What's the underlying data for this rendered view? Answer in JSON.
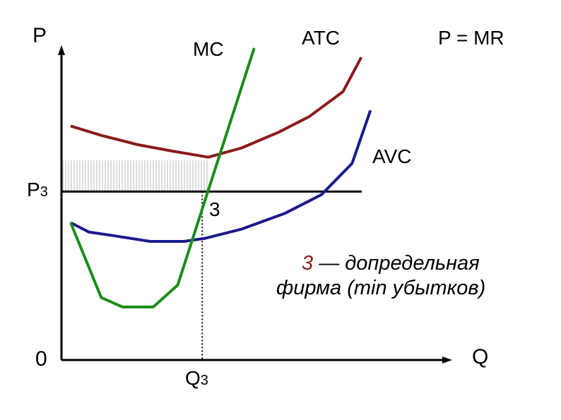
{
  "chart_data": {
    "type": "line",
    "title": "",
    "xlabel": "Q",
    "ylabel": "P",
    "origin_label": "0",
    "price_line_label": "P = MR",
    "p3_label": {
      "main": "P",
      "sub": "3"
    },
    "q3_label": {
      "main": "Q",
      "sub": "3"
    },
    "point_label": "3",
    "grid": false,
    "xlim": [
      0,
      10
    ],
    "ylim": [
      0,
      10
    ],
    "p3": 5.4,
    "q3": 4.6,
    "atc_at_q3": 6.4,
    "colors": {
      "atc": "#8b1a1a",
      "avc": "#1a1a8c",
      "mc": "#1a8c1a",
      "axes": "#000000",
      "note_number": "#8b1a1a"
    },
    "series": [
      {
        "name": "ATC",
        "color": "#8b1a1a",
        "x": [
          0.3,
          1.3,
          2.5,
          3.6,
          4.8,
          5.9,
          7.1,
          8.1,
          9.2,
          9.8
        ],
        "y": [
          7.5,
          7.2,
          6.9,
          6.7,
          6.5,
          6.8,
          7.3,
          7.8,
          8.6,
          9.7
        ]
      },
      {
        "name": "AVC",
        "color": "#1a1a8c",
        "x": [
          0.3,
          0.9,
          1.6,
          2.9,
          4.0,
          4.7,
          5.9,
          7.3,
          8.5,
          9.5,
          10.1
        ],
        "y": [
          4.4,
          4.1,
          4.0,
          3.8,
          3.8,
          3.9,
          4.2,
          4.7,
          5.3,
          6.3,
          8.0
        ]
      },
      {
        "name": "MC",
        "color": "#1a8c1a",
        "x": [
          0.3,
          1.3,
          2.0,
          3.0,
          3.8,
          6.3
        ],
        "y": [
          4.4,
          2.0,
          1.7,
          1.7,
          2.4,
          10.0
        ]
      }
    ],
    "annotation": {
      "number": "3",
      "line1_rest": " — допредельная",
      "line2": "фирма  (min убытков)"
    }
  }
}
